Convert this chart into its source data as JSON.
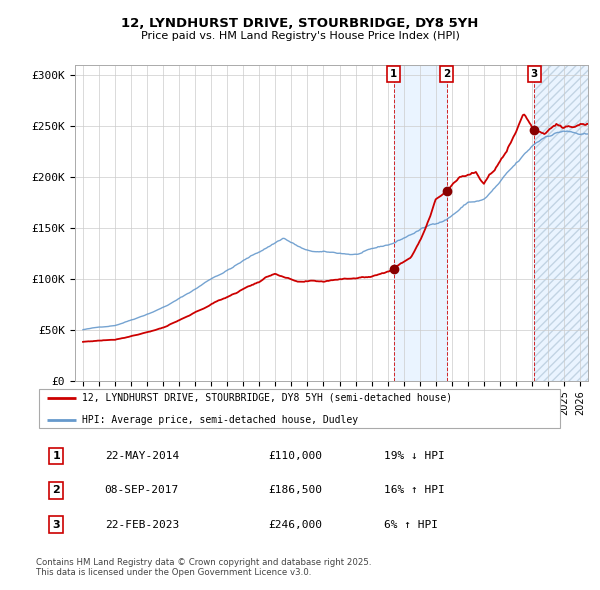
{
  "title": "12, LYNDHURST DRIVE, STOURBRIDGE, DY8 5YH",
  "subtitle": "Price paid vs. HM Land Registry's House Price Index (HPI)",
  "legend_line1": "12, LYNDHURST DRIVE, STOURBRIDGE, DY8 5YH (semi-detached house)",
  "legend_line2": "HPI: Average price, semi-detached house, Dudley",
  "transactions": [
    {
      "num": 1,
      "date": "22-MAY-2014",
      "price": 110000,
      "hpi_diff": "19% ↓ HPI",
      "year": 2014.39
    },
    {
      "num": 2,
      "date": "08-SEP-2017",
      "price": 186500,
      "hpi_diff": "16% ↑ HPI",
      "year": 2017.69
    },
    {
      "num": 3,
      "date": "22-FEB-2023",
      "price": 246000,
      "hpi_diff": "6% ↑ HPI",
      "year": 2023.14
    }
  ],
  "copyright": "Contains HM Land Registry data © Crown copyright and database right 2025.\nThis data is licensed under the Open Government Licence v3.0.",
  "red_color": "#cc0000",
  "blue_color": "#6699cc",
  "grid_color": "#cccccc",
  "ylim": [
    0,
    310000
  ],
  "xlim_start": 1994.5,
  "xlim_end": 2026.5,
  "yticks": [
    0,
    50000,
    100000,
    150000,
    200000,
    250000,
    300000
  ],
  "ytick_labels": [
    "£0",
    "£50K",
    "£100K",
    "£150K",
    "£200K",
    "£250K",
    "£300K"
  ],
  "xticks": [
    1995,
    1996,
    1997,
    1998,
    1999,
    2000,
    2001,
    2002,
    2003,
    2004,
    2005,
    2006,
    2007,
    2008,
    2009,
    2010,
    2011,
    2012,
    2013,
    2014,
    2015,
    2016,
    2017,
    2018,
    2019,
    2020,
    2021,
    2022,
    2023,
    2024,
    2025,
    2026
  ]
}
